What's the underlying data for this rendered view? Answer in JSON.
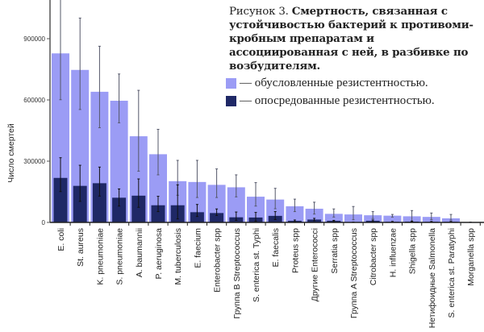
{
  "figure": {
    "label": "Рисунок 3.",
    "title": "Смертность, связанная с устойчивостью бактерий к противоми-кробным препаратам и ассоциированная с ней, в разбивке по возбудителям."
  },
  "legend": [
    {
      "label": "— обусловленные резистентностью.",
      "color": "#9b9cf5"
    },
    {
      "label": "— опосредованные резистентностью.",
      "color": "#1f2866"
    }
  ],
  "chart_data": {
    "type": "bar",
    "title": "",
    "xlabel": "",
    "ylabel": "Число смертей",
    "ylim": [
      0,
      1090000
    ],
    "yticks": [
      0,
      300000,
      600000,
      900000
    ],
    "ytick_labels": [
      "0",
      "300000",
      "600000",
      "900000"
    ],
    "grid": false,
    "legend_position": "top-right",
    "categories": [
      "E. coli",
      "St. aureus",
      "K. pneumoniae",
      "S. pneumoniae",
      "A. baumannii",
      "P. aeruginosa",
      "M. tuberculosis",
      "E. faecium",
      "Enterobacter spp",
      "Группа B Streptococcus",
      "S. enterica st. Typhi",
      "E. faecalis",
      "Proteus spp",
      "Другие Enterococci",
      "Serratia spp",
      "Группа A Streptococcus",
      "Citrobacter spp",
      "H. influenzae",
      "Shigella spp",
      "Нетифоидные Salmonella",
      "S. enterica st. Paratyphi",
      "Morganella spp"
    ],
    "series": [
      {
        "name": "— обусловленные резистентностью.",
        "color": "#9b9cf5",
        "values": [
          828000,
          747000,
          640000,
          596000,
          422000,
          334000,
          202000,
          198000,
          184000,
          172000,
          126000,
          112000,
          79000,
          67000,
          42000,
          39000,
          35000,
          33000,
          30000,
          27000,
          20000,
          1000
        ],
        "error_low": [
          601000,
          553000,
          464000,
          488000,
          251000,
          233000,
          133000,
          122000,
          122000,
          125000,
          80000,
          67000,
          53000,
          41000,
          26000,
          13000,
          19000,
          26000,
          7000,
          14000,
          12000,
          0
        ],
        "error_high": [
          1090000,
          1001000,
          863000,
          727000,
          647000,
          456000,
          304000,
          304000,
          262000,
          233000,
          195000,
          167000,
          114000,
          99000,
          66000,
          78000,
          53000,
          39000,
          58000,
          46000,
          39000,
          2000
        ]
      },
      {
        "name": "— опосредованные резистентностью.",
        "color": "#1f2866",
        "values": [
          218000,
          179000,
          192000,
          121000,
          131000,
          84000,
          84000,
          50000,
          46000,
          25000,
          24000,
          32000,
          8000,
          14000,
          8000,
          1000,
          8000,
          3000,
          4000,
          3000,
          3000,
          0
        ],
        "error_low": [
          151000,
          103000,
          129000,
          80000,
          74000,
          53000,
          17000,
          29000,
          34000,
          10000,
          6000,
          14000,
          4000,
          8000,
          4000,
          0,
          4000,
          1000,
          2000,
          1000,
          1000,
          0
        ],
        "error_high": [
          317000,
          280000,
          271000,
          164000,
          213000,
          128000,
          184000,
          88000,
          66000,
          51000,
          49000,
          53000,
          12000,
          20000,
          10000,
          2000,
          12000,
          5000,
          6000,
          5000,
          5000,
          0
        ]
      }
    ]
  }
}
